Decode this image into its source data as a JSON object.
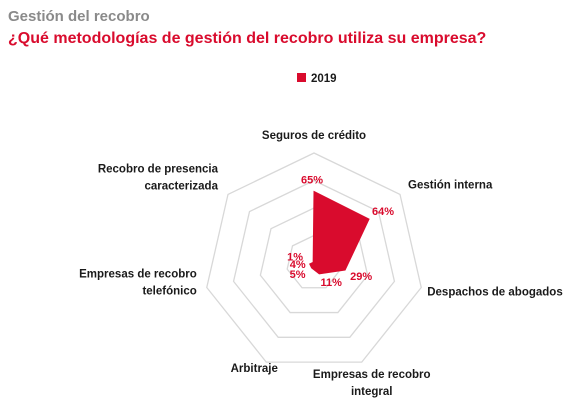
{
  "header": {
    "kicker": "Gestión del recobro",
    "title": "¿Qué metodologías de gestión del recobro utiliza su empresa?"
  },
  "colors": {
    "accent": "#d90b2d",
    "grid": "#d8d8d8",
    "kicker": "#8a8a8a"
  },
  "chart_data": {
    "type": "radar",
    "title": "¿Qué metodologías de gestión del recobro utiliza su empresa?",
    "categories": [
      [
        "Seguros de crédito"
      ],
      [
        "Gestión interna"
      ],
      [
        "Despachos de abogados"
      ],
      [
        "Empresas de recobro",
        "integral"
      ],
      [
        "Arbitraje"
      ],
      [
        "Empresas de recobro",
        "telefónico"
      ],
      [
        "Recobro de presencia",
        "caracterizada"
      ]
    ],
    "series": [
      {
        "name": "2019",
        "values": [
          65,
          64,
          29,
          11,
          5,
          4,
          1
        ],
        "labels": [
          "65%",
          "64%",
          "29%",
          "11%",
          "5%",
          "4%",
          "1%"
        ]
      }
    ],
    "rmax": 100,
    "grid_levels": 4,
    "legend": "top"
  }
}
